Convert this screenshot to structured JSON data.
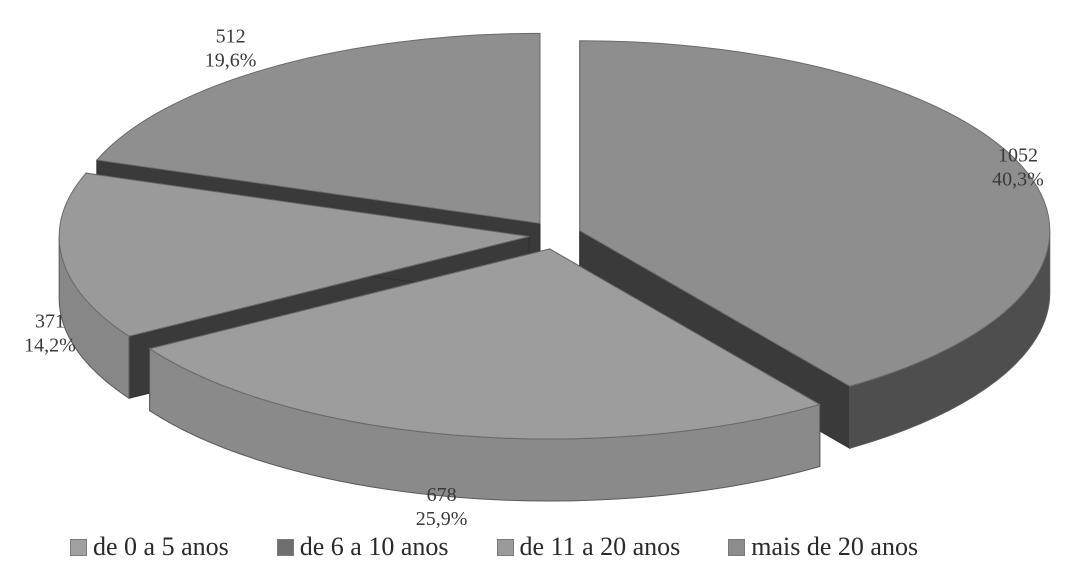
{
  "chart_data": {
    "type": "pie",
    "style": "3d-exploded",
    "categories": [
      "de 0 a 5 anos",
      "de 6 a 10 anos",
      "de 11 a 20 anos",
      "mais de 20 anos"
    ],
    "values": [
      1052,
      678,
      371,
      512
    ],
    "percent_labels": [
      "40,3%",
      "25,9%",
      "14,2%",
      "19,6%"
    ],
    "value_labels": [
      "1052",
      "678",
      "371",
      "512"
    ],
    "legend_position": "bottom",
    "colors": {
      "top": [
        "#8e8e8e",
        "#9d9d9d",
        "#9a9a9a",
        "#8f8f8f"
      ],
      "side": [
        "#4e4e4e",
        "#8a8a8a",
        "#878787",
        "#7e7e7e"
      ],
      "cut": [
        "#3a3a3a",
        "#4a4a4a",
        "#3a3a3a",
        "#3a3a3a"
      ],
      "swatch": [
        "#a0a0a0",
        "#6e6e6e",
        "#9a9a9a",
        "#8c8c8c"
      ]
    }
  },
  "legend": {
    "items": [
      {
        "label": "de 0 a 5 anos"
      },
      {
        "label": "de 6 a 10 anos"
      },
      {
        "label": "de 11 a 20 anos"
      },
      {
        "label": "mais de 20 anos"
      }
    ]
  }
}
